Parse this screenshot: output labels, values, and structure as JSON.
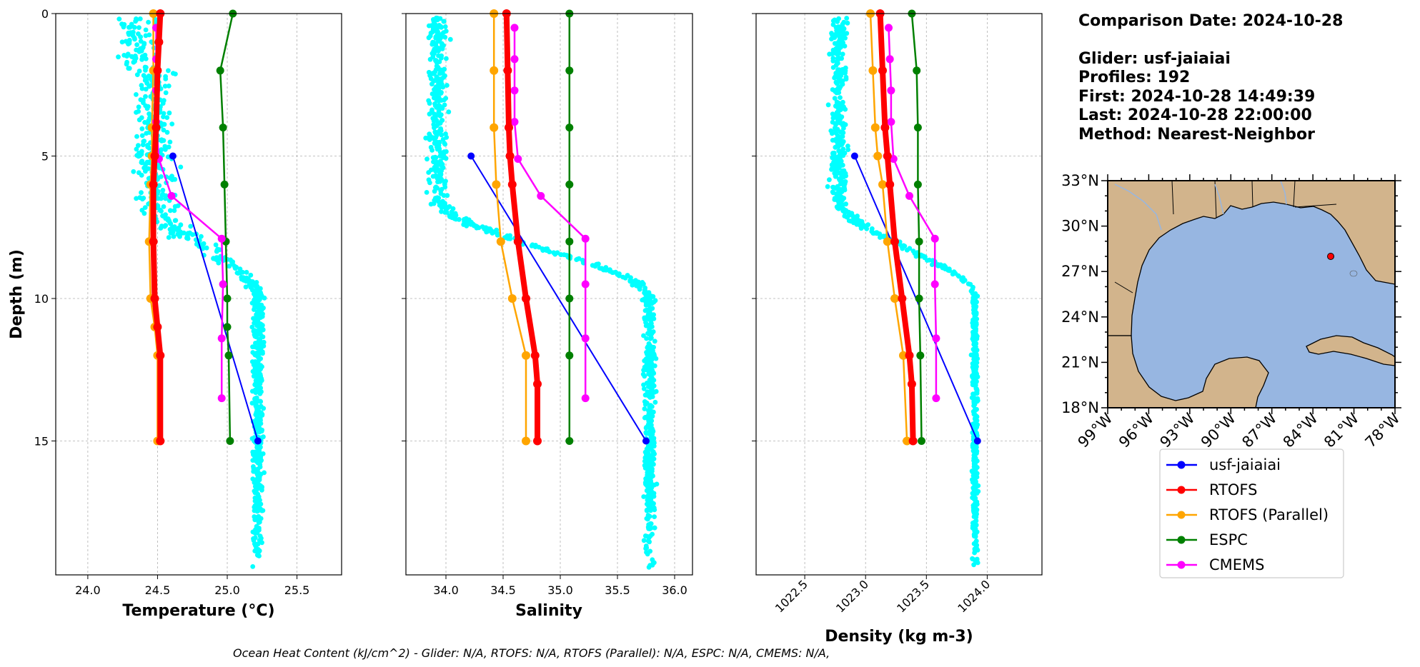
{
  "chart_data": [
    {
      "type": "line",
      "xlabel": "Temperature (°C)",
      "ylabel": "Depth (m)",
      "xlim": [
        23.77,
        25.82
      ],
      "ylim": [
        19.7,
        0
      ],
      "xticks": [
        "24.0",
        "24.5",
        "25.0",
        "25.5"
      ],
      "yticks": [
        "0",
        "5",
        "10",
        "15"
      ],
      "grid": true,
      "series": [
        {
          "name": "usf-jaiaiai",
          "x": [
            24.61,
            25.22
          ],
          "y": [
            5,
            15
          ]
        },
        {
          "name": "RTOFS",
          "x": [
            24.52,
            24.51,
            24.5,
            24.49,
            24.48,
            24.47,
            24.47,
            24.48,
            24.5,
            24.52,
            24.52
          ],
          "y": [
            0,
            1,
            2,
            4,
            5,
            6,
            8,
            10,
            11,
            12,
            15
          ]
        },
        {
          "name": "RTOFS (Parallel)",
          "x": [
            24.47,
            24.47,
            24.46,
            24.46,
            24.45,
            24.44,
            24.45,
            24.48,
            24.5,
            24.5
          ],
          "y": [
            0,
            2,
            4,
            5,
            6,
            8,
            10,
            11,
            12,
            15
          ]
        },
        {
          "name": "ESPC",
          "x": [
            25.04,
            24.95,
            24.97,
            24.98,
            24.99,
            25.0,
            25.0,
            25.01,
            25.02
          ],
          "y": [
            0,
            2,
            4,
            6,
            8,
            10,
            11,
            12,
            15
          ]
        },
        {
          "name": "CMEMS",
          "x": [
            24.49,
            24.49,
            24.49,
            24.49,
            24.51,
            24.6,
            24.96,
            24.97,
            24.96,
            24.96
          ],
          "y": [
            0.5,
            1.6,
            2.7,
            3.8,
            5.1,
            6.4,
            7.9,
            9.5,
            11.4,
            13.5
          ]
        }
      ]
    },
    {
      "type": "line",
      "xlabel": "Salinity",
      "xlim": [
        33.65,
        36.15
      ],
      "ylim": [
        19.7,
        0
      ],
      "xticks": [
        "34.0",
        "34.5",
        "35.0",
        "35.5",
        "36.0"
      ],
      "grid": true,
      "series": [
        {
          "name": "usf-jaiaiai",
          "x": [
            34.22,
            35.75
          ],
          "y": [
            5,
            15
          ]
        },
        {
          "name": "RTOFS",
          "x": [
            34.53,
            34.54,
            34.55,
            34.56,
            34.58,
            34.63,
            34.7,
            34.78,
            34.8,
            34.8
          ],
          "y": [
            0,
            2,
            4,
            5,
            6,
            8,
            10,
            12,
            13,
            15
          ]
        },
        {
          "name": "RTOFS (Parallel)",
          "x": [
            34.42,
            34.42,
            34.42,
            34.44,
            34.48,
            34.58,
            34.7,
            34.7
          ],
          "y": [
            0,
            2,
            4,
            6,
            8,
            10,
            12,
            15
          ]
        },
        {
          "name": "ESPC",
          "x": [
            35.08,
            35.08,
            35.08,
            35.08,
            35.08,
            35.08,
            35.08,
            35.08
          ],
          "y": [
            0,
            2,
            4,
            6,
            8,
            10,
            12,
            15
          ]
        },
        {
          "name": "CMEMS",
          "x": [
            34.6,
            34.6,
            34.6,
            34.6,
            34.63,
            34.83,
            35.22,
            35.22,
            35.22,
            35.22
          ],
          "y": [
            0.5,
            1.6,
            2.7,
            3.8,
            5.1,
            6.4,
            7.9,
            9.5,
            11.4,
            13.5
          ]
        }
      ]
    },
    {
      "type": "line",
      "xlabel": "Density (kg m-3)",
      "xlim": [
        1022.1,
        1024.45
      ],
      "ylim": [
        19.7,
        0
      ],
      "xticks": [
        "1022.5",
        "1023.0",
        "1023.5",
        "1024.0"
      ],
      "grid": true,
      "series": [
        {
          "name": "usf-jaiaiai",
          "x": [
            1022.91,
            1023.92
          ],
          "y": [
            5,
            15
          ]
        },
        {
          "name": "RTOFS",
          "x": [
            1023.12,
            1023.14,
            1023.16,
            1023.18,
            1023.2,
            1023.24,
            1023.3,
            1023.36,
            1023.38,
            1023.39
          ],
          "y": [
            0,
            2,
            4,
            5,
            6,
            8,
            10,
            12,
            13,
            15
          ]
        },
        {
          "name": "RTOFS (Parallel)",
          "x": [
            1023.04,
            1023.06,
            1023.08,
            1023.1,
            1023.14,
            1023.18,
            1023.24,
            1023.31,
            1023.34
          ],
          "y": [
            0,
            2,
            4,
            5,
            6,
            8,
            10,
            12,
            15
          ]
        },
        {
          "name": "ESPC",
          "x": [
            1023.38,
            1023.42,
            1023.43,
            1023.43,
            1023.44,
            1023.44,
            1023.45,
            1023.46
          ],
          "y": [
            0,
            2,
            4,
            6,
            8,
            10,
            12,
            15
          ]
        },
        {
          "name": "CMEMS",
          "x": [
            1023.19,
            1023.2,
            1023.21,
            1023.21,
            1023.23,
            1023.36,
            1023.57,
            1023.57,
            1023.58,
            1023.58
          ],
          "y": [
            0.5,
            1.6,
            2.7,
            3.8,
            5.1,
            6.4,
            7.9,
            9.5,
            11.4,
            13.5
          ]
        }
      ]
    }
  ],
  "colors": {
    "glider": "#0000ff",
    "rtofs": "#ff0000",
    "rtofs_parallel": "#ffa500",
    "espc": "#008000",
    "cmems": "#ff00ff",
    "scatter": "#00ffff",
    "ocean": "#97b6e1",
    "land": "#d2b48c",
    "glider_marker": "#ff0000"
  },
  "info": {
    "comparison_date": "Comparison Date: 2024-10-28",
    "glider": "Glider: usf-jaiaiai",
    "profiles": "Profiles: 192",
    "first": "First: 2024-10-28 14:49:39",
    "last": "Last: 2024-10-28 22:00:00",
    "method": "Method: Nearest-Neighbor"
  },
  "map": {
    "lat_labels": [
      "33°N",
      "30°N",
      "27°N",
      "24°N",
      "21°N",
      "18°N"
    ],
    "lon_labels": [
      "99°W",
      "96°W",
      "93°W",
      "90°W",
      "87°W",
      "84°W",
      "81°W",
      "78°W"
    ],
    "lon_range": [
      -99,
      -78
    ],
    "lat_range": [
      18,
      33
    ],
    "glider_location": {
      "lon": -82.7,
      "lat": 28.0
    }
  },
  "legend": {
    "placement": "below map",
    "entries": [
      "usf-jaiaiai",
      "RTOFS",
      "RTOFS (Parallel)",
      "ESPC",
      "CMEMS"
    ]
  },
  "footer": {
    "ohc": "Ocean Heat Content (kJ/cm^2) - Glider: N/A,  RTOFS: N/A,  RTOFS (Parallel): N/A,  ESPC: N/A,  CMEMS: N/A,"
  }
}
